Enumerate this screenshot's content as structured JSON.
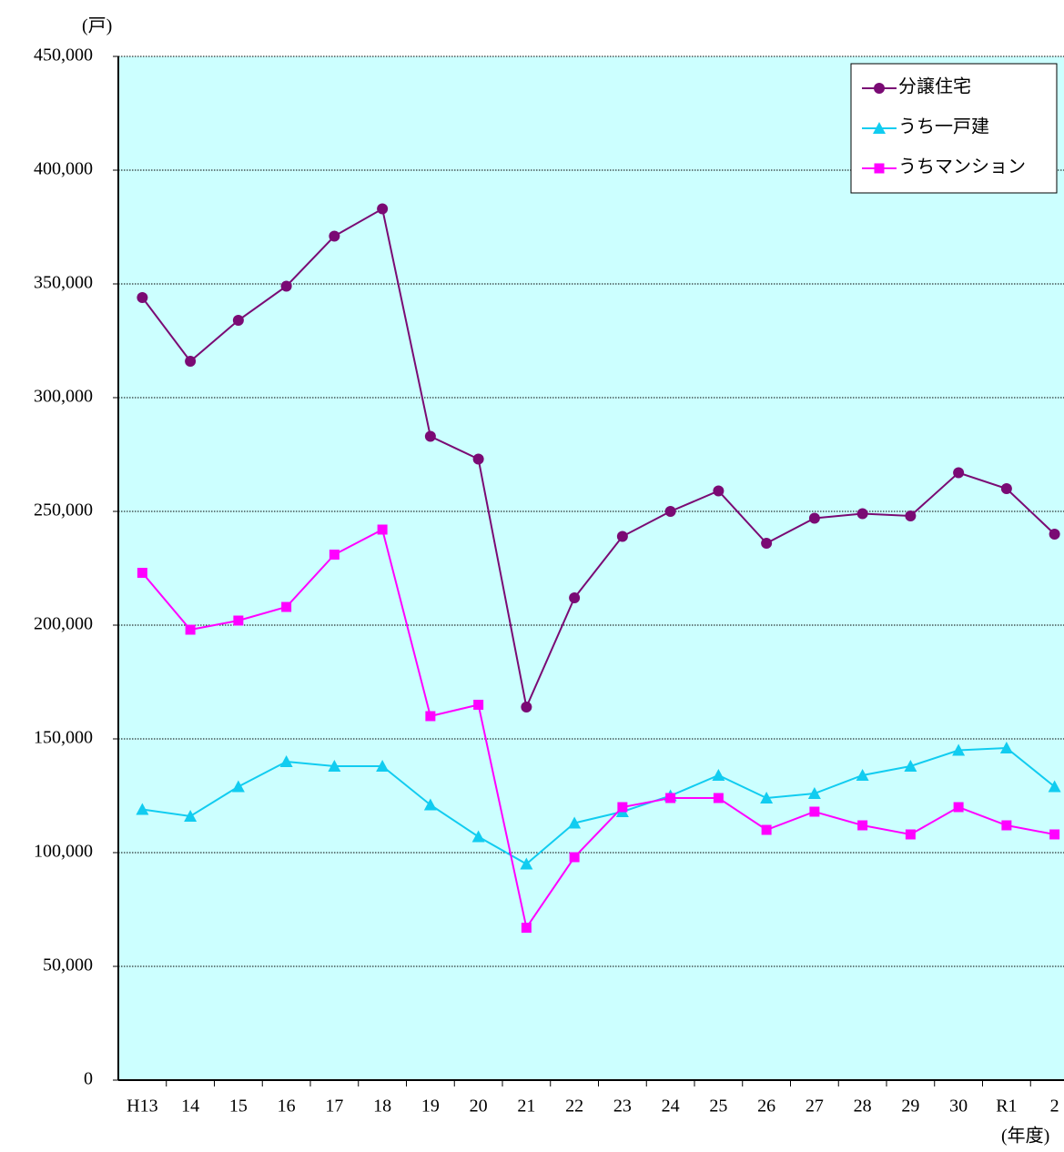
{
  "chart_data": {
    "type": "line",
    "y_label": "(戸)",
    "x_label": "(年度)",
    "categories": [
      "H13",
      "14",
      "15",
      "16",
      "17",
      "18",
      "19",
      "20",
      "21",
      "22",
      "23",
      "24",
      "25",
      "26",
      "27",
      "28",
      "29",
      "30",
      "R1",
      "2"
    ],
    "series": [
      {
        "name": "分譲住宅",
        "color": "#7a0a74",
        "marker": "circle",
        "values": [
          344000,
          316000,
          334000,
          349000,
          371000,
          383000,
          283000,
          273000,
          164000,
          212000,
          239000,
          250000,
          259000,
          236000,
          247000,
          249000,
          248000,
          267000,
          260000,
          240000
        ]
      },
      {
        "name": "うち一戸建",
        "color": "#11ccf0",
        "marker": "triangle",
        "values": [
          119000,
          116000,
          129000,
          140000,
          138000,
          138000,
          121000,
          107000,
          95000,
          113000,
          118000,
          125000,
          134000,
          124000,
          126000,
          134000,
          138000,
          145000,
          146000,
          129000
        ]
      },
      {
        "name": "うちマンション",
        "color": "#ff00ff",
        "marker": "square",
        "values": [
          223000,
          198000,
          202000,
          208000,
          231000,
          242000,
          160000,
          165000,
          67000,
          98000,
          120000,
          124000,
          124000,
          110000,
          118000,
          112000,
          108000,
          120000,
          112000,
          108000
        ]
      }
    ],
    "ylim": [
      0,
      450000
    ],
    "yticks": [
      0,
      {
        "value": 50000,
        "label": "50,000"
      },
      {
        "value": 100000,
        "label": "100,000"
      },
      {
        "value": 150000,
        "label": "150,000"
      },
      {
        "value": 200000,
        "label": "200,000"
      },
      {
        "value": 250000,
        "label": "250,000"
      },
      {
        "value": 300000,
        "label": "300,000"
      },
      {
        "value": 350000,
        "label": "350,000"
      },
      {
        "value": 400000,
        "label": "400,000"
      },
      {
        "value": 450000,
        "label": "450,000"
      }
    ],
    "grid": true,
    "legend": "upper right",
    "background": "#ccffff"
  }
}
